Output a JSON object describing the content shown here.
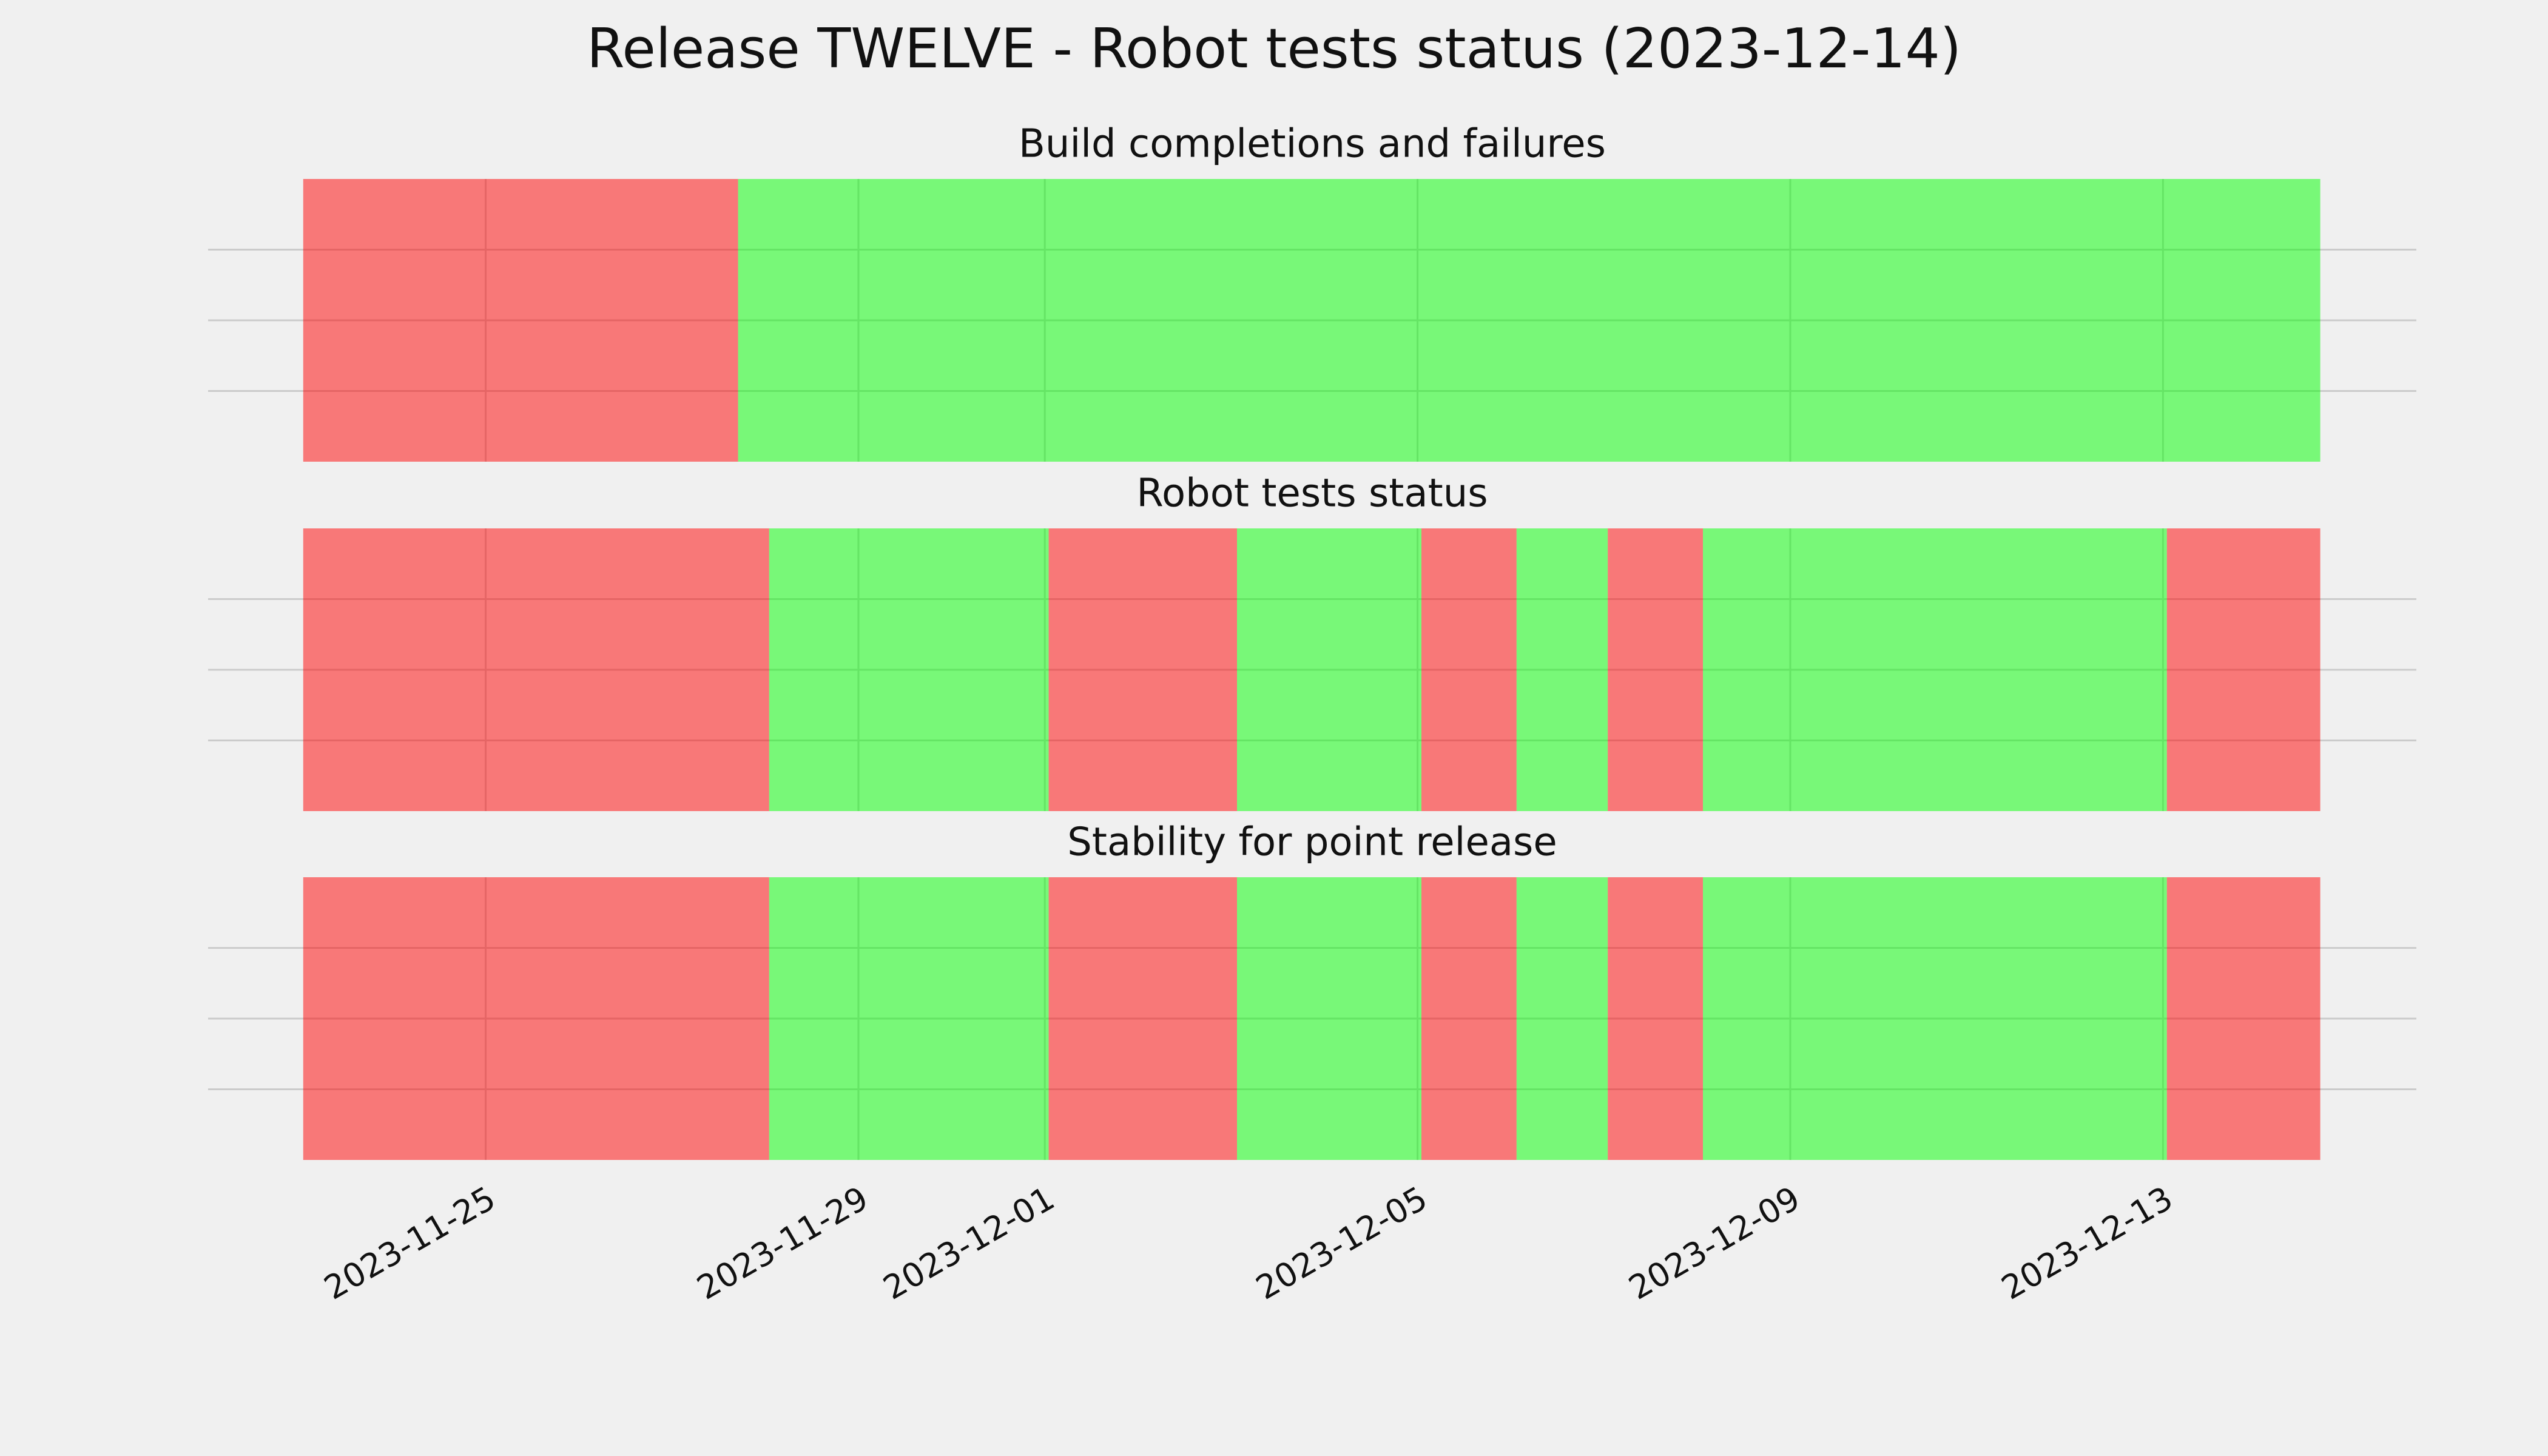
{
  "title": "Release TWELVE - Robot tests status (2023-12-14)",
  "chart_data": [
    {
      "type": "timeline",
      "title": "Build completions and failures",
      "xlim": [
        "2023-11-22 00:30",
        "2023-12-15 17:15"
      ],
      "xticks": [
        "2023-11-25",
        "2023-11-29",
        "2023-12-01",
        "2023-12-05",
        "2023-12-09",
        "2023-12-13"
      ],
      "ylim": [
        0,
        1
      ],
      "yticks": [
        0.25,
        0.5,
        0.75
      ],
      "grid": true,
      "alpha": 0.5,
      "spans": [
        {
          "start": "2023-11-23 01:00",
          "end": "2023-11-27 17:00",
          "color": "#ff0000"
        },
        {
          "start": "2023-11-27 17:00",
          "end": "2023-12-14 16:30",
          "color": "#00ff00"
        }
      ]
    },
    {
      "type": "timeline",
      "title": "Robot tests status",
      "xlim": [
        "2023-11-22 00:30",
        "2023-12-15 17:15"
      ],
      "xticks": [
        "2023-11-25",
        "2023-11-29",
        "2023-12-01",
        "2023-12-05",
        "2023-12-09",
        "2023-12-13"
      ],
      "ylim": [
        0,
        1
      ],
      "yticks": [
        0.25,
        0.5,
        0.75
      ],
      "grid": true,
      "alpha": 0.5,
      "spans": [
        {
          "start": "2023-11-23 01:00",
          "end": "2023-11-28 01:00",
          "color": "#ff0000"
        },
        {
          "start": "2023-11-28 01:00",
          "end": "2023-12-01 01:00",
          "color": "#00ff00"
        },
        {
          "start": "2023-12-01 01:00",
          "end": "2023-12-03 01:30",
          "color": "#ff0000"
        },
        {
          "start": "2023-12-03 01:30",
          "end": "2023-12-05 01:00",
          "color": "#00ff00"
        },
        {
          "start": "2023-12-05 01:00",
          "end": "2023-12-06 01:30",
          "color": "#ff0000"
        },
        {
          "start": "2023-12-06 01:30",
          "end": "2023-12-07 01:00",
          "color": "#00ff00"
        },
        {
          "start": "2023-12-07 01:00",
          "end": "2023-12-08 01:30",
          "color": "#ff0000"
        },
        {
          "start": "2023-12-08 01:30",
          "end": "2023-12-13 01:00",
          "color": "#00ff00"
        },
        {
          "start": "2023-12-13 01:00",
          "end": "2023-12-14 16:30",
          "color": "#ff0000"
        }
      ]
    },
    {
      "type": "timeline",
      "title": "Stability for point release",
      "xlim": [
        "2023-11-22 00:30",
        "2023-12-15 17:15"
      ],
      "xticks": [
        "2023-11-25",
        "2023-11-29",
        "2023-12-01",
        "2023-12-05",
        "2023-12-09",
        "2023-12-13"
      ],
      "ylim": [
        0,
        1
      ],
      "yticks": [
        0.25,
        0.5,
        0.75
      ],
      "grid": true,
      "alpha": 0.5,
      "spans": [
        {
          "start": "2023-11-23 01:00",
          "end": "2023-11-28 01:00",
          "color": "#ff0000"
        },
        {
          "start": "2023-11-28 01:00",
          "end": "2023-12-01 01:00",
          "color": "#00ff00"
        },
        {
          "start": "2023-12-01 01:00",
          "end": "2023-12-03 01:30",
          "color": "#ff0000"
        },
        {
          "start": "2023-12-03 01:30",
          "end": "2023-12-05 01:00",
          "color": "#00ff00"
        },
        {
          "start": "2023-12-05 01:00",
          "end": "2023-12-06 01:30",
          "color": "#ff0000"
        },
        {
          "start": "2023-12-06 01:30",
          "end": "2023-12-07 01:00",
          "color": "#00ff00"
        },
        {
          "start": "2023-12-07 01:00",
          "end": "2023-12-08 01:30",
          "color": "#ff0000"
        },
        {
          "start": "2023-12-08 01:30",
          "end": "2023-12-13 01:00",
          "color": "#00ff00"
        },
        {
          "start": "2023-12-13 01:00",
          "end": "2023-12-14 16:30",
          "color": "#ff0000"
        }
      ]
    }
  ]
}
